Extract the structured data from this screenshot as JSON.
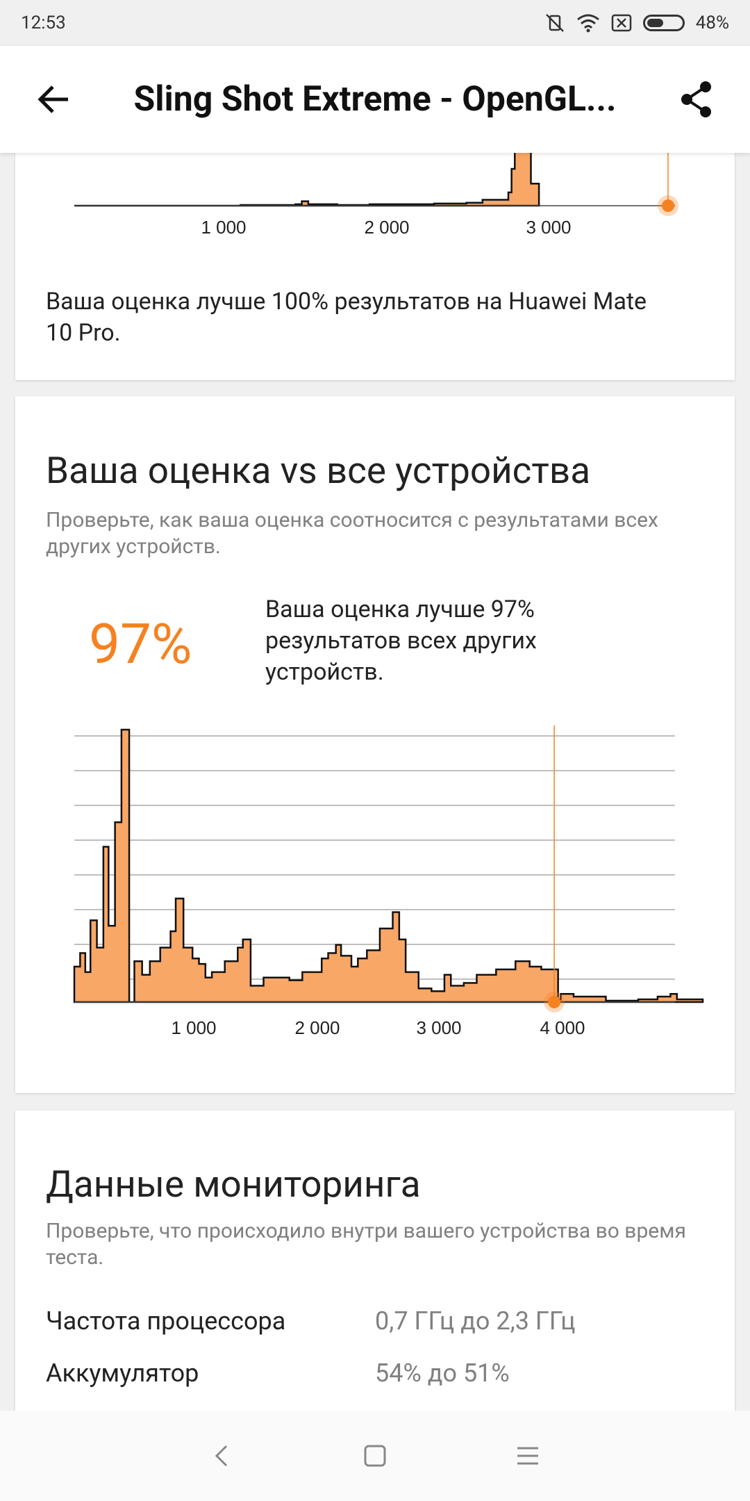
{
  "status_bar": {
    "time": "12:53",
    "battery_percent": "48%",
    "battery_level": 0.48
  },
  "app_bar": {
    "title": "Sling Shot Extreme - OpenGL...",
    "back_icon": "arrow-left-icon",
    "share_icon": "share-icon"
  },
  "device_card": {
    "chart_data": {
      "type": "area",
      "x_ticks": [
        "1 000",
        "2 000",
        "3 000"
      ],
      "x_range": [
        70,
        3750
      ],
      "grid": true,
      "marker_score": 3750,
      "points": [
        [
          70,
          0
        ],
        [
          400,
          0
        ],
        [
          800,
          0
        ],
        [
          1000,
          0
        ],
        [
          1100,
          0.01
        ],
        [
          1300,
          0.01
        ],
        [
          1440,
          0.02
        ],
        [
          1480,
          0.06
        ],
        [
          1520,
          0.02
        ],
        [
          1700,
          0.01
        ],
        [
          1900,
          0.02
        ],
        [
          2100,
          0.02
        ],
        [
          2300,
          0.03
        ],
        [
          2500,
          0.04
        ],
        [
          2600,
          0.08
        ],
        [
          2760,
          0.18
        ],
        [
          2780,
          0.5
        ],
        [
          2800,
          1.0
        ],
        [
          2880,
          1.0
        ],
        [
          2900,
          0.3
        ],
        [
          2950,
          0.0
        ]
      ]
    },
    "text": "Ваша оценка лучше 100% результатов на Huawei Mate 10 Pro."
  },
  "all_devices_card": {
    "title": "Ваша оценка vs все устройства",
    "subtitle": "Проверьте, как ваша оценка соотносится с результатами всех других устройств.",
    "percent": "97%",
    "text": "Ваша оценка лучше 97% результатов всех других устройств.",
    "chart_data": {
      "type": "area",
      "x_ticks": [
        "1 000",
        "2 000",
        "3 000",
        "4 000"
      ],
      "x_range": [
        35,
        4900
      ],
      "grid": true,
      "marker_score": 3750,
      "points": [
        [
          35,
          0.13
        ],
        [
          80,
          0.18
        ],
        [
          120,
          0.11
        ],
        [
          160,
          0.3
        ],
        [
          210,
          0.2
        ],
        [
          260,
          0.57
        ],
        [
          300,
          0.28
        ],
        [
          350,
          0.66
        ],
        [
          400,
          1.0
        ],
        [
          460,
          0.0
        ],
        [
          500,
          0.15
        ],
        [
          560,
          0.1
        ],
        [
          620,
          0.15
        ],
        [
          700,
          0.2
        ],
        [
          780,
          0.26
        ],
        [
          820,
          0.38
        ],
        [
          880,
          0.2
        ],
        [
          950,
          0.16
        ],
        [
          1000,
          0.14
        ],
        [
          1050,
          0.09
        ],
        [
          1100,
          0.11
        ],
        [
          1200,
          0.15
        ],
        [
          1300,
          0.2
        ],
        [
          1340,
          0.23
        ],
        [
          1400,
          0.06
        ],
        [
          1500,
          0.09
        ],
        [
          1700,
          0.08
        ],
        [
          1800,
          0.11
        ],
        [
          1950,
          0.16
        ],
        [
          2000,
          0.18
        ],
        [
          2060,
          0.21
        ],
        [
          2100,
          0.17
        ],
        [
          2180,
          0.13
        ],
        [
          2230,
          0.16
        ],
        [
          2300,
          0.19
        ],
        [
          2400,
          0.27
        ],
        [
          2500,
          0.33
        ],
        [
          2550,
          0.23
        ],
        [
          2600,
          0.11
        ],
        [
          2700,
          0.05
        ],
        [
          2800,
          0.04
        ],
        [
          2900,
          0.1
        ],
        [
          2950,
          0.06
        ],
        [
          3050,
          0.07
        ],
        [
          3150,
          0.1
        ],
        [
          3300,
          0.12
        ],
        [
          3450,
          0.15
        ],
        [
          3560,
          0.13
        ],
        [
          3650,
          0.12
        ],
        [
          3750,
          0.12
        ],
        [
          3780,
          0.01
        ],
        [
          3800,
          0.03
        ],
        [
          3900,
          0.02
        ],
        [
          4000,
          0.02
        ],
        [
          4150,
          0.005
        ],
        [
          4300,
          0.005
        ],
        [
          4400,
          0.01
        ],
        [
          4550,
          0.02
        ],
        [
          4650,
          0.03
        ],
        [
          4700,
          0.01
        ],
        [
          4900,
          0.0
        ]
      ]
    }
  },
  "monitoring_card": {
    "title": "Данные мониторинга",
    "subtitle": "Проверьте, что происходило внутри вашего устройства во время теста.",
    "rows": [
      {
        "label": "Частота процессора",
        "value": "0,7 ГГц до 2,3 ГГц"
      },
      {
        "label": "Аккумулятор",
        "value": "54% до 51%"
      }
    ]
  },
  "colors": {
    "accent": "#f58220",
    "fill": "#f9a766"
  },
  "nav_bar": {
    "back_icon": "nav-back-icon",
    "home_icon": "nav-home-icon",
    "menu_icon": "nav-menu-icon"
  }
}
